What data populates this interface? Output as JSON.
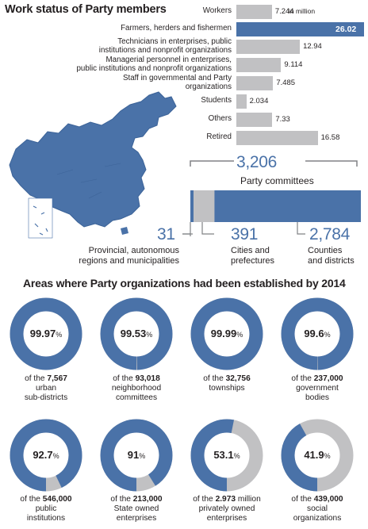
{
  "top": {
    "title": "Work status of Party members",
    "unit_label": "in million"
  },
  "chart_data": [
    {
      "type": "bar",
      "title": "Work status of Party members",
      "unit": "in million",
      "categories": [
        "Workers",
        "Farmers, herders and fishermen",
        "Technicians in enterprises, public institutions and nonprofit organizations",
        "Managerial personnel in enterprises, public institutions and nonprofit organizations",
        "Staff in governmental and Party organizations",
        "Students",
        "Others",
        "Retired"
      ],
      "category_lines": [
        [
          "Workers"
        ],
        [
          "Farmers, herders and fishermen"
        ],
        [
          "Technicians in enterprises, public",
          "institutions and nonprofit organizations"
        ],
        [
          "Managerial personnel in enterprises,",
          "public institutions and nonprofit organizations"
        ],
        [
          "Staff in governmental and Party",
          "organizations"
        ],
        [
          "Students"
        ],
        [
          "Others"
        ],
        [
          "Retired"
        ]
      ],
      "values": [
        7.244,
        26.02,
        12.94,
        9.114,
        7.485,
        2.034,
        7.33,
        16.58
      ],
      "value_labels": [
        "7.244",
        "26.02",
        "12.94",
        "9.114",
        "7.485",
        "2.034",
        "7.33",
        "16.58"
      ],
      "highlight_color": "#4a72a8",
      "bar_color": "#c1c1c3",
      "xlim": [
        0,
        26.02
      ]
    },
    {
      "type": "bar",
      "stacked": true,
      "title": "Party committees",
      "total_label": "3,206",
      "total": 3206,
      "segments": [
        {
          "name": "Provincial, autonomous regions and municipalities",
          "lines": [
            "Provincial, autonomous",
            "regions and municipalities"
          ],
          "value": 31,
          "label": "31",
          "color": "#4a72a8"
        },
        {
          "name": "Cities and prefectures",
          "lines": [
            "Cities and",
            "prefectures"
          ],
          "value": 391,
          "label": "391",
          "color": "#c1c1c3"
        },
        {
          "name": "Counties and districts",
          "lines": [
            "Counties",
            "and districts"
          ],
          "value": 2784,
          "label": "2,784",
          "color": "#4a72a8"
        }
      ]
    },
    {
      "type": "pie",
      "donut": true,
      "title": "Areas where Party organizations had been established by 2014",
      "fill_color": "#4a72a8",
      "rest_color": "#c1c1c3",
      "items": [
        {
          "percent": 99.97,
          "pct_main": "99.97",
          "pre": "of the",
          "count": "7,567",
          "unit": "",
          "lines": [
            "urban",
            "sub-districts"
          ]
        },
        {
          "percent": 99.53,
          "pct_main": "99.53",
          "pre": "of the",
          "count": "93,018",
          "unit": "",
          "lines": [
            "neighborhood",
            "committees"
          ]
        },
        {
          "percent": 99.99,
          "pct_main": "99.99",
          "pre": "of the",
          "count": "32,756",
          "unit": "",
          "lines": [
            "townships"
          ]
        },
        {
          "percent": 99.6,
          "pct_main": "99.6",
          "pre": "of the",
          "count": "237,000",
          "unit": "",
          "lines": [
            "government",
            "bodies"
          ]
        },
        {
          "percent": 92.7,
          "pct_main": "92.7",
          "pre": "of the",
          "count": "546,000",
          "unit": "",
          "lines": [
            "public",
            "institutions"
          ]
        },
        {
          "percent": 91,
          "pct_main": "91",
          "pre": "of the",
          "count": "213,000",
          "unit": "",
          "lines": [
            "State owned",
            "enterprises"
          ]
        },
        {
          "percent": 53.1,
          "pct_main": "53.1",
          "pre": "of the",
          "count": "2.973",
          "unit": " million",
          "lines": [
            "privately owned",
            "enterprises"
          ]
        },
        {
          "percent": 41.9,
          "pct_main": "41.9",
          "pre": "of the",
          "count": "439,000",
          "unit": "",
          "lines": [
            "social",
            "organizations"
          ]
        }
      ],
      "pct_sign": "%"
    }
  ]
}
